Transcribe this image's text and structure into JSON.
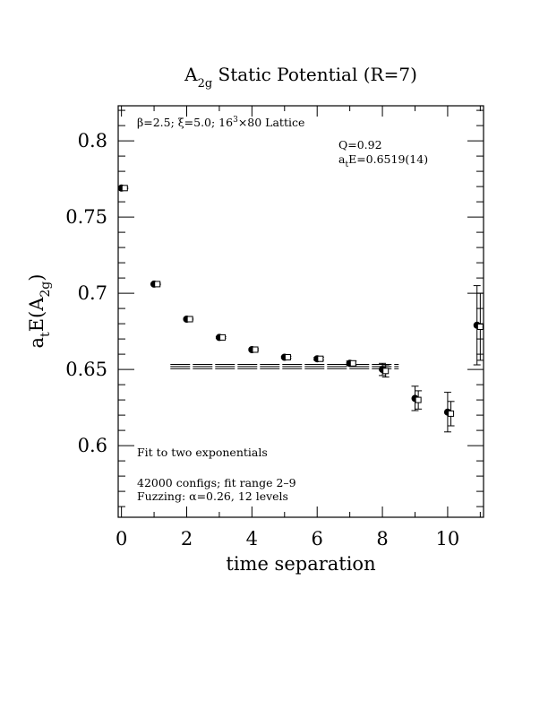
{
  "chart_data": {
    "type": "scatter",
    "title_main": "A",
    "title_sub": "2g",
    "title_rest": " Static Potential (R=7)",
    "xlabel": "time separation",
    "ylabel_main": "a",
    "ylabel_sub1": "t",
    "ylabel_mid": "E(A",
    "ylabel_sub2": "2g",
    "ylabel_end": ")",
    "xlim": [
      -0.1,
      11.1
    ],
    "ylim": [
      0.553,
      0.823
    ],
    "x_ticks": [
      0,
      2,
      4,
      6,
      8,
      10
    ],
    "x_tick_labels": [
      "0",
      "2",
      "4",
      "6",
      "8",
      "10"
    ],
    "y_ticks": [
      0.6,
      0.65,
      0.7,
      0.75,
      0.8
    ],
    "y_tick_labels": [
      "0.6",
      "0.65",
      "0.7",
      "0.75",
      "0.8"
    ],
    "grid": false,
    "series": [
      {
        "marker": "filled-circle",
        "points": [
          {
            "x": 0,
            "y": 0.769,
            "err": 0.0005
          },
          {
            "x": 1,
            "y": 0.706,
            "err": 0.0005
          },
          {
            "x": 2,
            "y": 0.683,
            "err": 0.0005
          },
          {
            "x": 3,
            "y": 0.671,
            "err": 0.0005
          },
          {
            "x": 4,
            "y": 0.663,
            "err": 0.0006
          },
          {
            "x": 5,
            "y": 0.658,
            "err": 0.0007
          },
          {
            "x": 6,
            "y": 0.657,
            "err": 0.0009
          },
          {
            "x": 7,
            "y": 0.654,
            "err": 0.0015
          },
          {
            "x": 8,
            "y": 0.65,
            "err": 0.004
          },
          {
            "x": 9,
            "y": 0.631,
            "err": 0.008
          },
          {
            "x": 10,
            "y": 0.622,
            "err": 0.013
          },
          {
            "x": 10.9,
            "y": 0.679,
            "err": 0.026
          }
        ]
      },
      {
        "marker": "open-square",
        "points": [
          {
            "x": 0.1,
            "y": 0.769,
            "err": 0.0005
          },
          {
            "x": 1.1,
            "y": 0.706,
            "err": 0.0005
          },
          {
            "x": 2.1,
            "y": 0.683,
            "err": 0.0005
          },
          {
            "x": 3.1,
            "y": 0.671,
            "err": 0.0005
          },
          {
            "x": 4.1,
            "y": 0.663,
            "err": 0.0006
          },
          {
            "x": 5.1,
            "y": 0.658,
            "err": 0.0007
          },
          {
            "x": 6.1,
            "y": 0.657,
            "err": 0.0009
          },
          {
            "x": 7.1,
            "y": 0.654,
            "err": 0.0015
          },
          {
            "x": 8.1,
            "y": 0.649,
            "err": 0.004
          },
          {
            "x": 9.1,
            "y": 0.63,
            "err": 0.006
          },
          {
            "x": 10.1,
            "y": 0.621,
            "err": 0.008
          },
          {
            "x": 11.0,
            "y": 0.678,
            "err": 0.022
          }
        ]
      }
    ],
    "fit": {
      "x_range": [
        1.5,
        8.5
      ],
      "value": 0.6519,
      "error": 0.0014
    },
    "annotations": {
      "lattice_pre": "β=2.5; ξ=5.0; 16",
      "lattice_sup": "3",
      "lattice_post": "×80 Lattice",
      "q_value": "Q=0.92",
      "fit_result_main": "a",
      "fit_result_sub": "t",
      "fit_result_rest": "E=0.6519(14)",
      "fit_type": "Fit to two exponentials",
      "configs": "42000 configs; fit range 2–9",
      "fuzzing": "Fuzzing: α=0.26, 12 levels"
    }
  }
}
